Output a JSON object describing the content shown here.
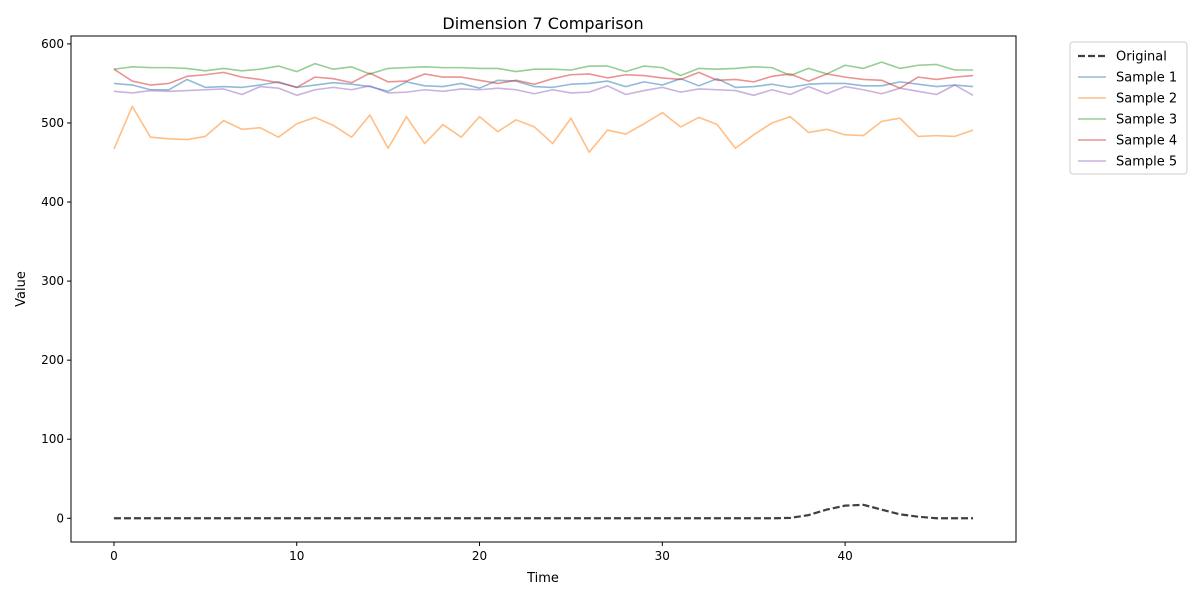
{
  "chart_data": {
    "type": "line",
    "title": "Dimension 7 Comparison",
    "xlabel": "Time",
    "ylabel": "Value",
    "xlim": [
      -2.35,
      49.35
    ],
    "ylim": [
      -30,
      610
    ],
    "xticks": [
      0,
      10,
      20,
      30,
      40
    ],
    "yticks": [
      0,
      100,
      200,
      300,
      400,
      500,
      600
    ],
    "legend_placement": "outside-top-right",
    "grid": false,
    "x": [
      0,
      1,
      2,
      3,
      4,
      5,
      6,
      7,
      8,
      9,
      10,
      11,
      12,
      13,
      14,
      15,
      16,
      17,
      18,
      19,
      20,
      21,
      22,
      23,
      24,
      25,
      26,
      27,
      28,
      29,
      30,
      31,
      32,
      33,
      34,
      35,
      36,
      37,
      38,
      39,
      40,
      41,
      42,
      43,
      44,
      45,
      46,
      47
    ],
    "series": [
      {
        "name": "Original",
        "color": "#404040",
        "dashed": true,
        "width": 2.2,
        "opacity": 1.0,
        "values": [
          0,
          0,
          0,
          0,
          0,
          0,
          0,
          0,
          0,
          0,
          0,
          0,
          0,
          0,
          0,
          0,
          0,
          0,
          0,
          0,
          0,
          0,
          0,
          0,
          0,
          0,
          0,
          0,
          0,
          0,
          0,
          0,
          0,
          0,
          0,
          0,
          0,
          0.5,
          4,
          11,
          16,
          17,
          11,
          5,
          2,
          0,
          0,
          0
        ]
      },
      {
        "name": "Sample 1",
        "color": "#1f77b4",
        "dashed": false,
        "width": 1.6,
        "opacity": 0.5,
        "values": [
          550,
          548,
          542,
          542,
          555,
          545,
          546,
          545,
          548,
          552,
          545,
          548,
          551,
          549,
          546,
          540,
          552,
          547,
          546,
          550,
          544,
          554,
          553,
          546,
          545,
          549,
          550,
          553,
          546,
          552,
          548,
          556,
          547,
          556,
          545,
          546,
          549,
          545,
          549,
          550,
          550,
          547,
          547,
          552,
          549,
          546,
          548,
          546
        ]
      },
      {
        "name": "Sample 2",
        "color": "#ff7f0e",
        "dashed": false,
        "width": 1.6,
        "opacity": 0.5,
        "values": [
          467,
          521,
          482,
          480,
          479,
          483,
          503,
          492,
          494,
          482,
          499,
          507,
          497,
          482,
          510,
          468,
          508,
          474,
          498,
          482,
          508,
          489,
          504,
          495,
          474,
          506,
          463,
          491,
          486,
          499,
          513,
          495,
          507,
          498,
          468,
          485,
          500,
          508,
          488,
          492,
          485,
          484,
          502,
          506,
          483,
          484,
          483,
          491
        ]
      },
      {
        "name": "Sample 3",
        "color": "#2ca02c",
        "dashed": false,
        "width": 1.6,
        "opacity": 0.5,
        "values": [
          568,
          571,
          570,
          570,
          569,
          566,
          569,
          566,
          568,
          572,
          565,
          575,
          568,
          571,
          562,
          569,
          570,
          571,
          570,
          570,
          569,
          569,
          565,
          568,
          568,
          567,
          572,
          572,
          565,
          572,
          570,
          560,
          569,
          568,
          569,
          571,
          570,
          560,
          569,
          562,
          573,
          569,
          577,
          569,
          573,
          574,
          567,
          567
        ]
      },
      {
        "name": "Sample 4",
        "color": "#d62728",
        "dashed": false,
        "width": 1.6,
        "opacity": 0.5,
        "values": [
          568,
          553,
          548,
          550,
          559,
          561,
          564,
          558,
          555,
          551,
          545,
          558,
          556,
          551,
          563,
          552,
          553,
          562,
          558,
          558,
          554,
          550,
          554,
          549,
          556,
          561,
          562,
          557,
          561,
          560,
          557,
          555,
          564,
          554,
          555,
          552,
          559,
          562,
          553,
          562,
          558,
          555,
          554,
          544,
          558,
          555,
          558,
          560
        ]
      },
      {
        "name": "Sample 5",
        "color": "#9467bd",
        "dashed": false,
        "width": 1.6,
        "opacity": 0.5,
        "values": [
          540,
          538,
          541,
          540,
          541,
          542,
          543,
          536,
          546,
          544,
          535,
          542,
          545,
          542,
          547,
          538,
          539,
          542,
          540,
          543,
          542,
          544,
          542,
          537,
          542,
          538,
          539,
          547,
          536,
          541,
          545,
          539,
          543,
          542,
          541,
          535,
          542,
          536,
          546,
          537,
          546,
          542,
          537,
          544,
          540,
          536,
          548,
          535
        ]
      }
    ]
  }
}
